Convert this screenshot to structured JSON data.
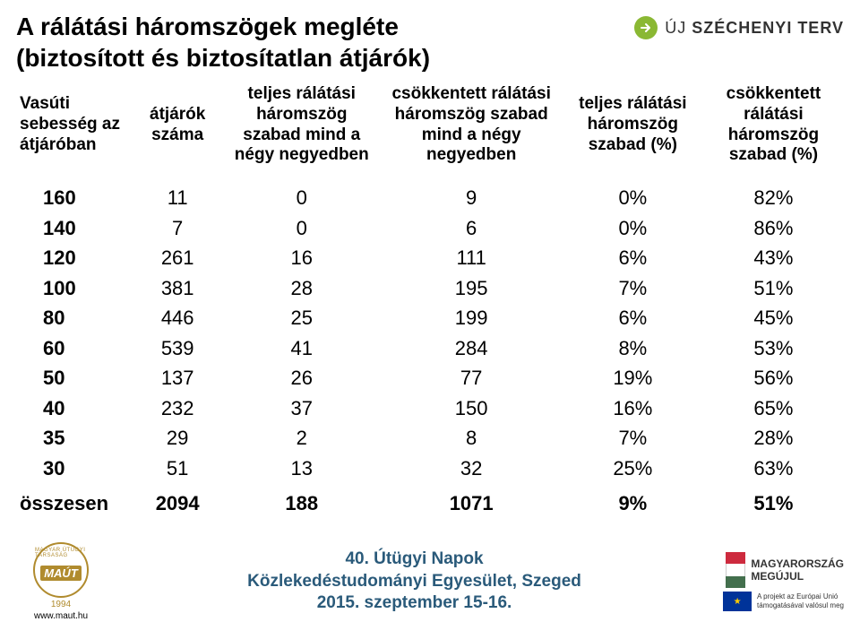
{
  "title": {
    "line1": "A rálátási háromszögek megléte",
    "line2": "(biztosított és biztosítatlan átjárók)"
  },
  "szechenyi": {
    "prefix": "ÚJ",
    "name": "SZÉCHENYI TERV"
  },
  "table": {
    "headers": [
      "Vasúti sebesség az átjáróban",
      "átjárók száma",
      "teljes rálátási háromszög szabad mind a négy negyedben",
      "csökkentett rálátási háromszög szabad mind a négy negyedben",
      "teljes rálátási háromszög szabad (%)",
      "csökkentett rálátási háromszög szabad (%)"
    ],
    "rows": [
      [
        "160",
        "11",
        "0",
        "9",
        "0%",
        "82%"
      ],
      [
        "140",
        "7",
        "0",
        "6",
        "0%",
        "86%"
      ],
      [
        "120",
        "261",
        "16",
        "111",
        "6%",
        "43%"
      ],
      [
        "100",
        "381",
        "28",
        "195",
        "7%",
        "51%"
      ],
      [
        "80",
        "446",
        "25",
        "199",
        "6%",
        "45%"
      ],
      [
        "60",
        "539",
        "41",
        "284",
        "8%",
        "53%"
      ],
      [
        "50",
        "137",
        "26",
        "77",
        "19%",
        "56%"
      ],
      [
        "40",
        "232",
        "37",
        "150",
        "16%",
        "65%"
      ],
      [
        "35",
        "29",
        "2",
        "8",
        "7%",
        "28%"
      ],
      [
        "30",
        "51",
        "13",
        "32",
        "25%",
        "63%"
      ]
    ],
    "footer": [
      "összesen",
      "2094",
      "188",
      "1071",
      "9%",
      "51%"
    ]
  },
  "event": {
    "line1": "40. Útügyi Napok",
    "line2": "Közlekedéstudományi Egyesület, Szeged",
    "line3": "2015. szeptember 15-16."
  },
  "maut": {
    "arc": "MAGYAR ÚTÜGYI TÁRSASÁG",
    "main": "MAÚT",
    "year": "1994",
    "url": "www.maut.hu"
  },
  "mm": {
    "line1": "MAGYARORSZÁG",
    "line2": "MEGÚJUL"
  },
  "eu": {
    "line1": "A projekt az Európai Unió",
    "line2": "támogatásával valósul meg"
  }
}
